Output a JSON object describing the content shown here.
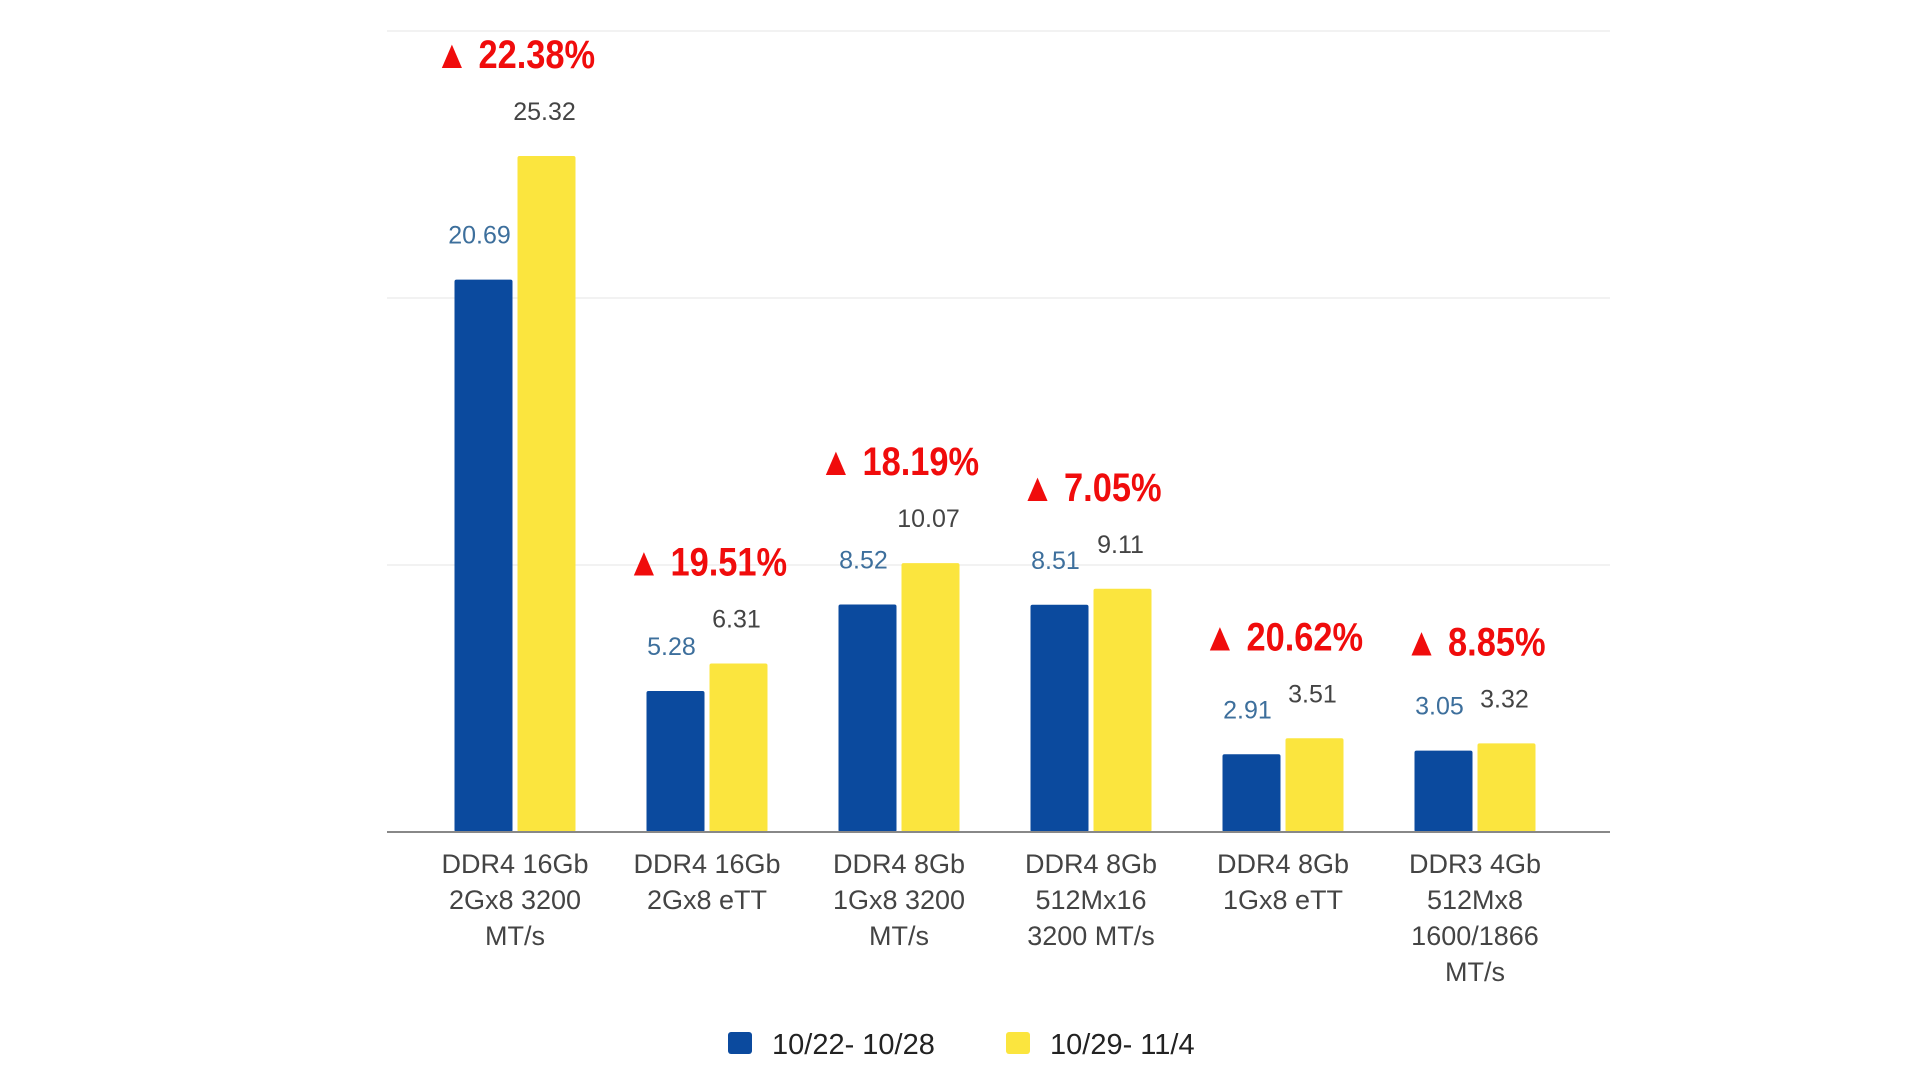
{
  "chart_data": {
    "type": "bar",
    "categories": [
      [
        "DDR4 16Gb",
        "2Gx8 3200",
        "MT/s"
      ],
      [
        "DDR4 16Gb",
        "2Gx8 eTT"
      ],
      [
        "DDR4 8Gb",
        "1Gx8 3200",
        "MT/s"
      ],
      [
        "DDR4 8Gb",
        "512Mx16",
        "3200 MT/s"
      ],
      [
        "DDR4 8Gb",
        "1Gx8 eTT"
      ],
      [
        "DDR3 4Gb",
        "512Mx8",
        "1600/1866",
        "MT/s"
      ]
    ],
    "series": [
      {
        "name": "10/22- 10/28",
        "color": "#0b4a9e",
        "label_color": "#3d6f9c",
        "values": [
          20.69,
          5.28,
          8.52,
          8.51,
          2.91,
          3.05
        ],
        "labels": [
          "20.69",
          "5.28",
          "8.52",
          "8.51",
          "2.91",
          "3.05"
        ]
      },
      {
        "name": "10/29- 11/4",
        "color": "#fbe53e",
        "label_color": "#444444",
        "values": [
          25.32,
          6.31,
          10.07,
          9.11,
          3.51,
          3.32
        ],
        "labels": [
          "25.32",
          "6.31",
          "10.07",
          "9.11",
          "3.51",
          "3.32"
        ]
      }
    ],
    "annotations": [
      "▲ 22.38%",
      "▲ 19.51%",
      "▲ 18.19%",
      "▲ 7.05%",
      "▲ 20.62%",
      "▲ 8.85%"
    ],
    "annotation_color": "#f00c0c",
    "ylim": [
      0,
      30
    ],
    "gridlines": [
      0,
      10,
      20,
      30
    ],
    "grid": true,
    "legend_position": "bottom",
    "title": "",
    "xlabel": "",
    "ylabel": ""
  }
}
